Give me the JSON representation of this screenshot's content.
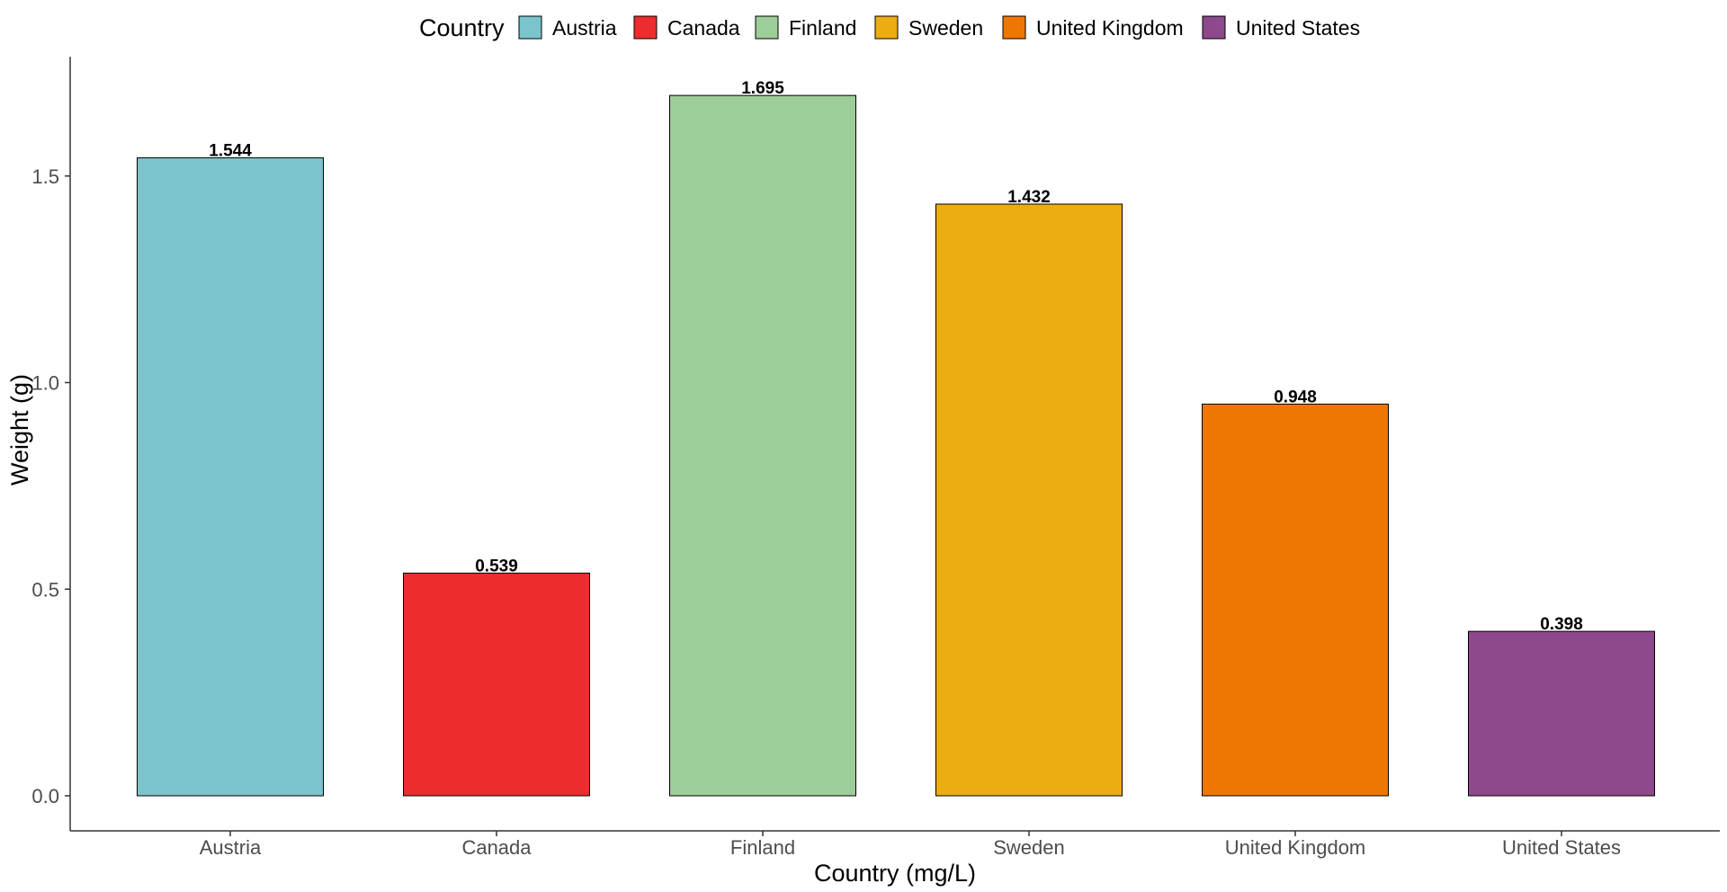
{
  "chart_data": {
    "type": "bar",
    "categories": [
      "Austria",
      "Canada",
      "Finland",
      "Sweden",
      "United Kingdom",
      "United States"
    ],
    "values": [
      1.544,
      0.539,
      1.695,
      1.432,
      0.948,
      0.398
    ],
    "value_labels": [
      "1.544",
      "0.539",
      "1.695",
      "1.432",
      "0.948",
      "0.398"
    ],
    "colors": [
      "#7cc4cc",
      "#ee2b2e",
      "#9dcd99",
      "#ecad13",
      "#ee7701",
      "#8d498c"
    ],
    "xlabel": "Country (mg/L)",
    "ylabel": "Weight (g)",
    "ylim": [
      0,
      1.78
    ],
    "yticks": [
      0.0,
      0.5,
      1.0,
      1.5
    ],
    "ytick_labels": [
      "0.0",
      "0.5",
      "1.0",
      "1.5"
    ],
    "legend": {
      "title": "Country",
      "placement": "top",
      "entries": [
        "Austria",
        "Canada",
        "Finland",
        "Sweden",
        "United Kingdom",
        "United States"
      ]
    },
    "grid": false
  }
}
